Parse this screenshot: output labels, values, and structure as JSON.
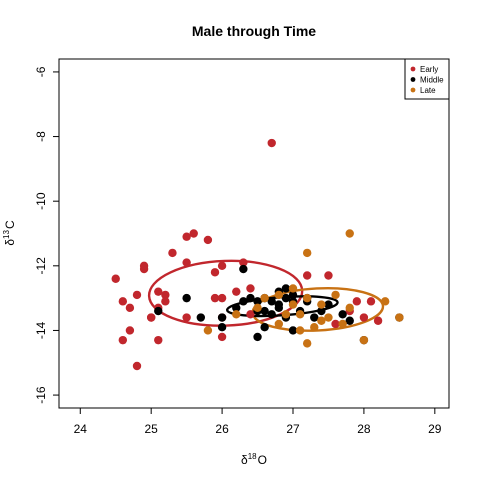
{
  "chart_data": {
    "type": "scatter",
    "title": "Male through Time",
    "xlabel": {
      "base": "δ",
      "sup": "18",
      "tail": "O"
    },
    "ylabel": {
      "base": "δ",
      "sup": "13",
      "tail": "C"
    },
    "xlim": [
      23.7,
      29.2
    ],
    "ylim": [
      -16.4,
      -5.6
    ],
    "xticks": [
      24,
      25,
      26,
      27,
      28,
      29
    ],
    "yticks": [
      -16,
      -14,
      -12,
      -10,
      -8,
      -6
    ],
    "grid": false,
    "legend_position": "top-right",
    "series": [
      {
        "name": "Early",
        "color": "#c1272d",
        "x": [
          24.5,
          24.6,
          24.6,
          24.7,
          24.7,
          24.8,
          24.8,
          24.9,
          24.9,
          25.0,
          25.1,
          25.1,
          25.1,
          25.2,
          25.2,
          25.3,
          25.5,
          25.5,
          25.6,
          25.8,
          25.9,
          25.9,
          26.0,
          26.0,
          26.0,
          26.2,
          26.3,
          26.4,
          26.7,
          27.2,
          27.5,
          27.8,
          27.9,
          28.1,
          28.2,
          28.0,
          27.6,
          26.4,
          26.0,
          25.0,
          25.5
        ],
        "y": [
          -12.4,
          -13.1,
          -14.3,
          -13.3,
          -14.0,
          -12.9,
          -15.1,
          -12.1,
          -12.0,
          -13.6,
          -14.3,
          -12.8,
          -13.3,
          -12.9,
          -13.1,
          -11.6,
          -11.9,
          -11.1,
          -11.0,
          -11.2,
          -13.0,
          -12.2,
          -13.0,
          -13.6,
          -14.2,
          -12.8,
          -11.9,
          -12.7,
          -8.2,
          -12.3,
          -12.3,
          -13.4,
          -13.1,
          -13.1,
          -13.7,
          -13.6,
          -13.8,
          -13.5,
          -12.0,
          -13.6,
          -13.6
        ]
      },
      {
        "name": "Middle",
        "color": "#000000",
        "x": [
          25.1,
          25.5,
          25.7,
          26.0,
          26.0,
          26.2,
          26.3,
          26.3,
          26.4,
          26.5,
          26.5,
          26.5,
          26.6,
          26.6,
          26.7,
          26.7,
          26.8,
          26.8,
          26.9,
          26.9,
          27.0,
          27.0,
          27.1,
          27.2,
          27.2,
          27.3,
          27.4,
          27.5,
          27.7,
          27.8,
          28.0,
          26.6,
          26.8,
          27.0,
          28.5,
          26.9
        ],
        "y": [
          -13.4,
          -13.0,
          -13.6,
          -13.6,
          -13.9,
          -13.3,
          -12.1,
          -13.1,
          -13.0,
          -13.4,
          -13.1,
          -14.2,
          -13.0,
          -13.4,
          -13.1,
          -13.5,
          -12.8,
          -13.3,
          -13.0,
          -13.6,
          -13.1,
          -12.9,
          -13.4,
          -13.1,
          -13.0,
          -13.6,
          -13.4,
          -13.2,
          -13.5,
          -13.7,
          -14.3,
          -13.9,
          -13.2,
          -14.0,
          -13.6,
          -12.7
        ]
      },
      {
        "name": "Late",
        "color": "#c87214",
        "x": [
          25.8,
          26.2,
          26.6,
          26.8,
          26.9,
          27.0,
          27.0,
          27.1,
          27.1,
          27.2,
          27.2,
          27.2,
          27.3,
          27.4,
          27.4,
          27.5,
          27.7,
          27.8,
          27.8,
          28.0,
          28.3,
          28.5,
          26.8,
          26.5,
          27.6
        ],
        "y": [
          -14.0,
          -13.5,
          -13.0,
          -13.8,
          -13.5,
          -12.7,
          -13.2,
          -13.5,
          -14.0,
          -11.6,
          -13.0,
          -14.4,
          -13.9,
          -13.2,
          -13.7,
          -13.6,
          -13.8,
          -13.3,
          -11.0,
          -14.3,
          -13.1,
          -13.6,
          -12.9,
          -13.3,
          -12.9
        ]
      }
    ],
    "ellipses": [
      {
        "series": "Early",
        "cx": 26.05,
        "cy": -12.85,
        "rx": 1.08,
        "ry": 1.0,
        "angle": -2
      },
      {
        "series": "Late",
        "cx": 27.35,
        "cy": -13.35,
        "rx": 0.92,
        "ry": 0.65,
        "angle": -3
      },
      {
        "series": "Middle",
        "cx": 26.85,
        "cy": -13.25,
        "rx": 0.78,
        "ry": 0.28,
        "angle": -4
      }
    ]
  }
}
